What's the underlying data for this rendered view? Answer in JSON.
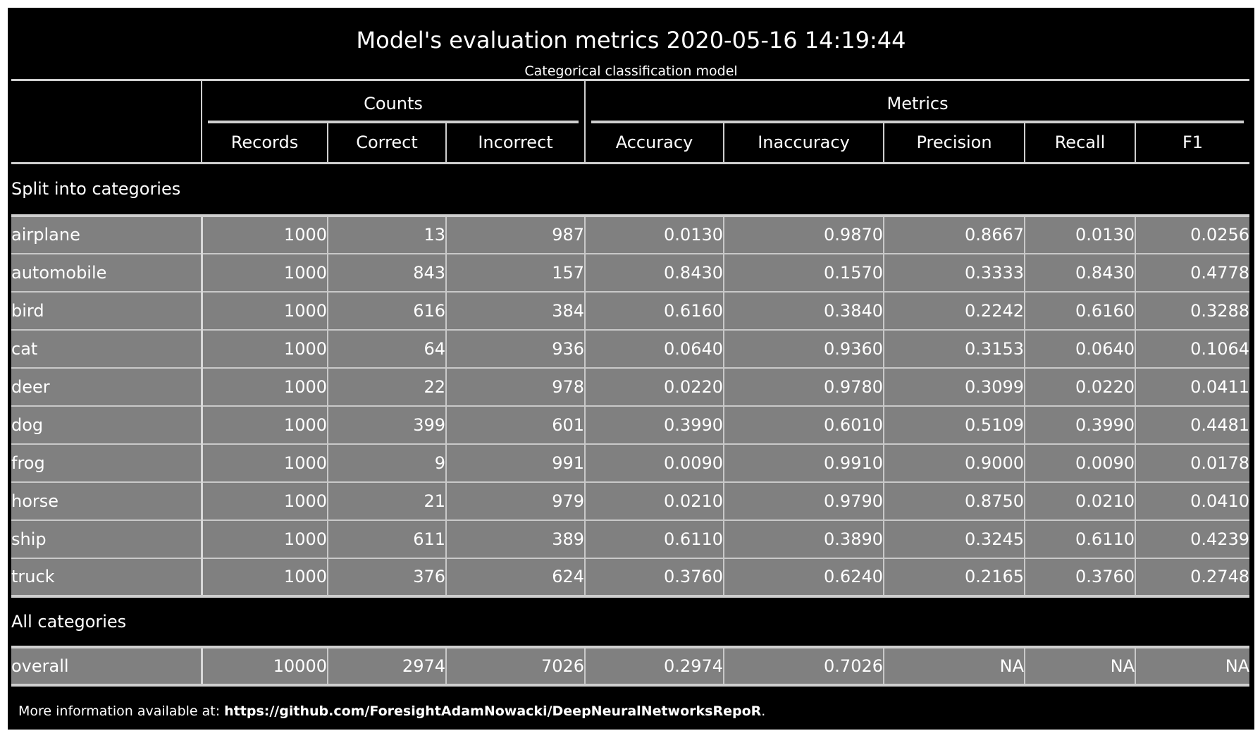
{
  "chart_data": {
    "type": "table",
    "title": "Model's evaluation metrics 2020-05-16 14:19:44",
    "subtitle": "Categorical classification model",
    "column_groups": [
      {
        "name": "Counts",
        "columns": [
          "Records",
          "Correct",
          "Incorrect"
        ]
      },
      {
        "name": "Metrics",
        "columns": [
          "Accuracy",
          "Inaccuracy",
          "Precision",
          "Recall",
          "F1"
        ]
      }
    ],
    "columns": [
      "Records",
      "Correct",
      "Incorrect",
      "Accuracy",
      "Inaccuracy",
      "Precision",
      "Recall",
      "F1"
    ],
    "sections": [
      {
        "title": "Split into categories",
        "rows": [
          {
            "label": "airplane",
            "values": [
              "1000",
              "13",
              "987",
              "0.0130",
              "0.9870",
              "0.8667",
              "0.0130",
              "0.0256"
            ]
          },
          {
            "label": "automobile",
            "values": [
              "1000",
              "843",
              "157",
              "0.8430",
              "0.1570",
              "0.3333",
              "0.8430",
              "0.4778"
            ]
          },
          {
            "label": "bird",
            "values": [
              "1000",
              "616",
              "384",
              "0.6160",
              "0.3840",
              "0.2242",
              "0.6160",
              "0.3288"
            ]
          },
          {
            "label": "cat",
            "values": [
              "1000",
              "64",
              "936",
              "0.0640",
              "0.9360",
              "0.3153",
              "0.0640",
              "0.1064"
            ]
          },
          {
            "label": "deer",
            "values": [
              "1000",
              "22",
              "978",
              "0.0220",
              "0.9780",
              "0.3099",
              "0.0220",
              "0.0411"
            ]
          },
          {
            "label": "dog",
            "values": [
              "1000",
              "399",
              "601",
              "0.3990",
              "0.6010",
              "0.5109",
              "0.3990",
              "0.4481"
            ]
          },
          {
            "label": "frog",
            "values": [
              "1000",
              "9",
              "991",
              "0.0090",
              "0.9910",
              "0.9000",
              "0.0090",
              "0.0178"
            ]
          },
          {
            "label": "horse",
            "values": [
              "1000",
              "21",
              "979",
              "0.0210",
              "0.9790",
              "0.8750",
              "0.0210",
              "0.0410"
            ]
          },
          {
            "label": "ship",
            "values": [
              "1000",
              "611",
              "389",
              "0.6110",
              "0.3890",
              "0.3245",
              "0.6110",
              "0.4239"
            ]
          },
          {
            "label": "truck",
            "values": [
              "1000",
              "376",
              "624",
              "0.3760",
              "0.6240",
              "0.2165",
              "0.3760",
              "0.2748"
            ]
          }
        ]
      },
      {
        "title": "All categories",
        "rows": [
          {
            "label": "overall",
            "values": [
              "10000",
              "2974",
              "7026",
              "0.2974",
              "0.7026",
              "NA",
              "NA",
              "NA"
            ]
          }
        ]
      }
    ]
  },
  "footer": {
    "prefix": "More information available at: ",
    "link": "https://github.com/ForesightAdamNowacki/DeepNeuralNetworksRepoR",
    "suffix": "."
  },
  "colors": {
    "background": "#000000",
    "cell_fill": "#808080",
    "grid": "#cfcfcf",
    "text": "#ffffff"
  }
}
